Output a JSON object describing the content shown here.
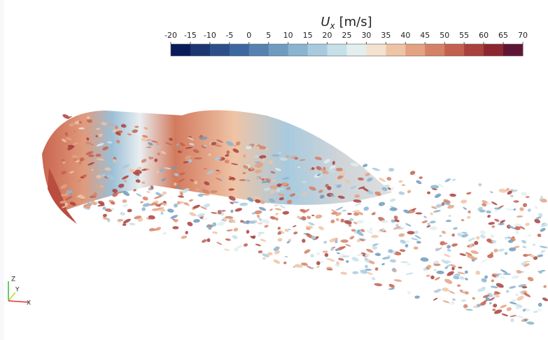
{
  "colorbar": {
    "symbol": "U",
    "subscript": "x",
    "unit": "[m/s]",
    "range": [
      -20,
      70
    ],
    "ticks": [
      -20,
      -15,
      -10,
      -5,
      0,
      5,
      10,
      15,
      20,
      25,
      30,
      35,
      40,
      45,
      50,
      55,
      60,
      65,
      70
    ],
    "colors": [
      "#0a1b5a",
      "#1c3672",
      "#2b4f8a",
      "#3d67a0",
      "#5582b0",
      "#6e9bc0",
      "#8ab4cf",
      "#a8cade",
      "#c6dfe8",
      "#e3efef",
      "#f3e2cf",
      "#efc4a6",
      "#e4a282",
      "#d58166",
      "#c3604f",
      "#a9413d",
      "#8c2730",
      "#5f1636"
    ]
  },
  "triad": {
    "labels": [
      "Z",
      "Y",
      "X"
    ]
  }
}
